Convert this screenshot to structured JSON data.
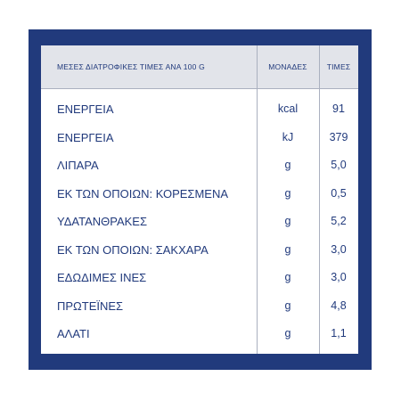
{
  "table": {
    "headers": {
      "name": "ΜΕΣΕΣ ΔΙΑΤΡΟΦΙΚΕΣ ΤΙΜΕΣ ΑΝΑ 100 G",
      "unit": "ΜΟΝΑΔΕΣ",
      "value": "ΤΙΜΕΣ"
    },
    "rows": [
      {
        "name": "ΕΝΕΡΓΕΙΑ",
        "unit": "kcal",
        "value": "91"
      },
      {
        "name": "ΕΝΕΡΓΕΙΑ",
        "unit": "kJ",
        "value": "379"
      },
      {
        "name": "ΛΙΠΑΡΑ",
        "unit": "g",
        "value": "5,0"
      },
      {
        "name": "ΕΚ ΤΩΝ ΟΠΟΙΩΝ: ΚΟΡΕΣΜΕΝΑ",
        "unit": "g",
        "value": "0,5"
      },
      {
        "name": "ΥΔΑΤΑΝΘΡΑΚΕΣ",
        "unit": "g",
        "value": "5,2"
      },
      {
        "name": "ΕΚ ΤΩΝ ΟΠΟΙΩΝ: ΣΑΚΧΑΡΑ",
        "unit": "g",
        "value": "3,0"
      },
      {
        "name": "ΕΔΩΔΙΜΕΣ ΙΝΕΣ",
        "unit": "g",
        "value": "3,0"
      },
      {
        "name": "ΠΡΩΤΕΪΝΕΣ",
        "unit": "g",
        "value": "4,8"
      },
      {
        "name": "ΑΛΑΤΙ",
        "unit": "g",
        "value": "1,1"
      }
    ]
  },
  "colors": {
    "frame": "#213a7c",
    "text": "#213a7c",
    "header_bg": "#e2e4ea",
    "grid": "#aab0bf"
  }
}
